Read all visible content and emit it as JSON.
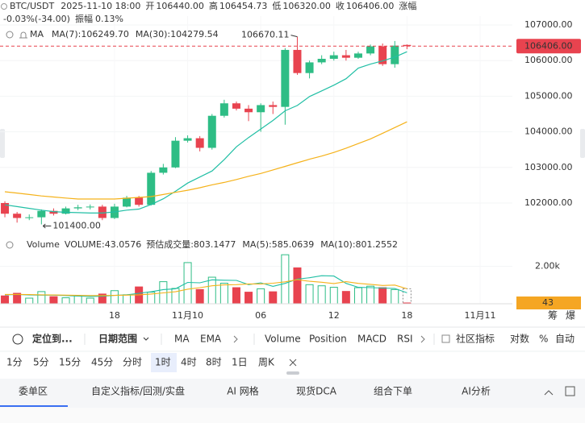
{
  "header": {
    "symbol": "BTC/USDT",
    "datetime": "2025-11-10 18:00",
    "fields": [
      {
        "label": "开",
        "value": "106440.00"
      },
      {
        "label": "高",
        "value": "106454.73"
      },
      {
        "label": "低",
        "value": "106320.00"
      },
      {
        "label": "收",
        "value": "106406.00"
      }
    ],
    "change_label": "涨幅",
    "change": "-0.03%(-34.00)",
    "amplitude_label": "振幅",
    "amplitude": "0.13%",
    "indicator": "MA"
  },
  "chart_data": [
    {
      "type": "candlestick",
      "open": [
        102000,
        101700,
        101580,
        101600,
        101780,
        101700,
        101850,
        101880,
        101900,
        101580,
        101900,
        102150,
        101950,
        102850,
        103000,
        103750,
        103820,
        103550,
        104450,
        104800,
        104650,
        104550,
        104750,
        104700,
        106300,
        105650,
        105950,
        106050,
        106150,
        106080,
        106200,
        106400,
        105900,
        106440
      ],
      "high": [
        102050,
        101750,
        101680,
        101820,
        101850,
        101900,
        101950,
        101960,
        101950,
        101980,
        102200,
        102200,
        102900,
        103100,
        103850,
        103900,
        103880,
        104500,
        104900,
        104850,
        104750,
        104800,
        104850,
        106350,
        106670.11,
        106000,
        106150,
        106250,
        106300,
        106250,
        106450,
        106480,
        106550,
        106454.73
      ],
      "low": [
        101600,
        101450,
        101520,
        101400,
        101650,
        101680,
        101800,
        101820,
        101520,
        101550,
        101880,
        101900,
        101930,
        102800,
        102980,
        103700,
        103450,
        103500,
        104400,
        104600,
        104300,
        104000,
        104500,
        104200,
        105600,
        105500,
        105900,
        106000,
        106000,
        106050,
        106150,
        105850,
        105800,
        106320
      ],
      "close": [
        101700,
        101580,
        101600,
        101780,
        101700,
        101850,
        101880,
        101900,
        101580,
        101900,
        102150,
        101950,
        102850,
        103000,
        103750,
        103820,
        103550,
        104450,
        104800,
        104650,
        104550,
        104750,
        104700,
        106300,
        105650,
        105950,
        106050,
        106150,
        106080,
        106200,
        106400,
        105900,
        106420,
        106406
      ],
      "colors": {
        "up": "#2ebd85",
        "down": "#e8434f"
      },
      "xlim": [
        -0.4,
        41.65
      ],
      "xticks": [
        {
          "value": 9,
          "label": "18"
        },
        {
          "value": 15,
          "label": "11月10"
        },
        {
          "value": 21,
          "label": "06"
        },
        {
          "value": 27,
          "label": "12"
        },
        {
          "value": 33,
          "label": "18"
        },
        {
          "value": 39,
          "label": "11月11"
        }
      ],
      "ylim": [
        101140,
        107249
      ],
      "yticks": [
        {
          "value": 102000,
          "label": "102000.00"
        },
        {
          "value": 103000,
          "label": "103000.00"
        },
        {
          "value": 104000,
          "label": "104000.00"
        },
        {
          "value": 105000,
          "label": "105000.00"
        },
        {
          "value": 106000,
          "label": "106000.00"
        },
        {
          "value": 107000,
          "label": "107000.00"
        }
      ],
      "grid": true,
      "series": [
        {
          "name": "MA(7):",
          "color": "#21bfa5",
          "legend_value": "106249.70",
          "values": [
            101950,
            101900,
            101850,
            101800,
            101760,
            101740,
            101730,
            101720,
            101720,
            101750,
            101800,
            101830,
            101960,
            102120,
            102330,
            102560,
            102730,
            102900,
            103220,
            103580,
            103840,
            104080,
            104320,
            104590,
            104740,
            104990,
            105150,
            105310,
            105490,
            105790,
            105900,
            105990,
            106100,
            106250
          ]
        },
        {
          "name": "MA(30):",
          "color": "#f5b21a",
          "legend_value": "104279.54",
          "values": [
            102317,
            102280,
            102240,
            102200,
            102170,
            102140,
            102113,
            102113,
            102113,
            102113,
            102135,
            102158,
            102180,
            102240,
            102300,
            102360,
            102430,
            102510,
            102580,
            102660,
            102750,
            102830,
            102930,
            103030,
            103130,
            103230,
            103320,
            103420,
            103540,
            103670,
            103800,
            103960,
            104120,
            104280
          ]
        }
      ],
      "max_label": "106670.11",
      "min_label": "101400.00",
      "last_price_label": "106406.00"
    },
    {
      "type": "bar",
      "legend_name": "Volume",
      "value_name": "VOLUME:",
      "values": [
        420,
        560,
        300,
        650,
        380,
        320,
        420,
        300,
        520,
        700,
        480,
        900,
        620,
        1180,
        820,
        2200,
        760,
        1420,
        1100,
        860,
        620,
        800,
        640,
        2620,
        1920,
        1020,
        960,
        880,
        660,
        860,
        940,
        860,
        760,
        43.0576
      ],
      "current_label": "43",
      "estimate_name": "预估成交量:",
      "estimate": 803.1477,
      "ylim": [
        0,
        2800
      ],
      "yticks": [
        {
          "value": 2000,
          "label": "2.00k"
        }
      ],
      "series": [
        {
          "name": "MA(5):",
          "color": "#21bfa5",
          "values": [
            480,
            500,
            470,
            460,
            460,
            440,
            410,
            390,
            400,
            450,
            480,
            560,
            640,
            760,
            800,
            1140,
            1120,
            1280,
            1260,
            1250,
            1020,
            1120,
            930,
            1090,
            1320,
            1390,
            1500,
            1480,
            1090,
            880,
            860,
            840,
            820,
            585.0639
          ]
        },
        {
          "name": "MA(10):",
          "color": "#f5b21a",
          "values": [
            500,
            500,
            490,
            480,
            470,
            460,
            450,
            440,
            440,
            450,
            460,
            480,
            520,
            580,
            640,
            780,
            860,
            960,
            1010,
            1020,
            1060,
            1060,
            1100,
            1170,
            1290,
            1200,
            1150,
            1080,
            1180,
            1090,
            1040,
            980,
            1000,
            801.2552
          ]
        }
      ]
    }
  ],
  "side_buttons": [
    "筹",
    "爆"
  ],
  "toolbar": [
    "定位到...",
    "日期范围",
    "MA",
    "EMA",
    "Volume",
    "Position",
    "MACD",
    "RSI",
    "社区指标",
    "对数",
    "%",
    "自动"
  ],
  "toolbar_active": [
    2,
    4,
    11
  ],
  "intervals": [
    "1分",
    "5分",
    "15分",
    "45分",
    "分时",
    "1时",
    "4时",
    "8时",
    "1日",
    "周K"
  ],
  "interval_selected": 5,
  "tabs": [
    "委单区",
    "自定义指标/回测/实盘",
    "AI 网格",
    "现货DCA",
    "组合下单",
    "AI分析"
  ],
  "tab_selected": 0
}
